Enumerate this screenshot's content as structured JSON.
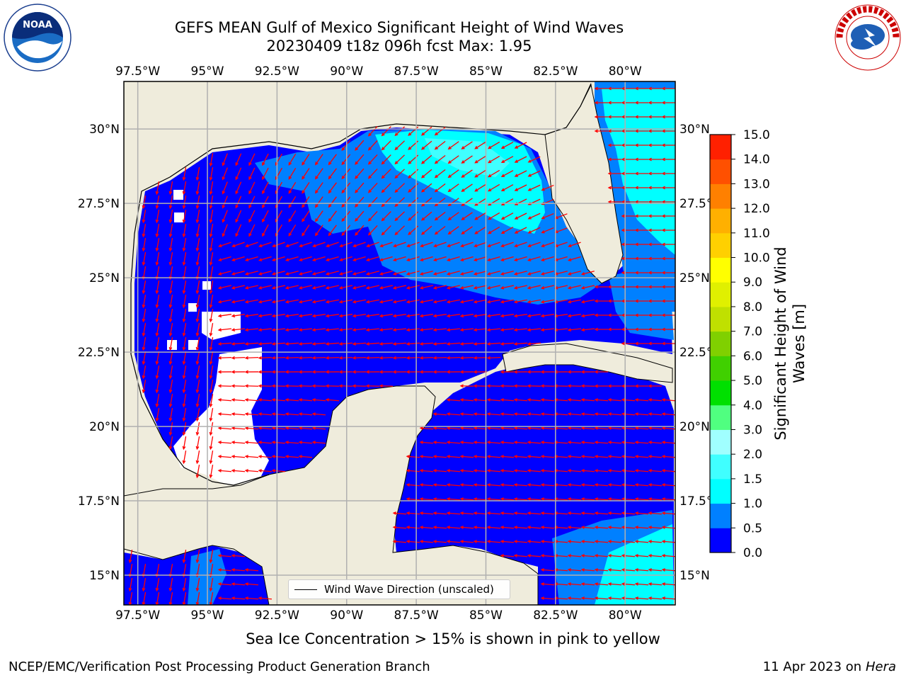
{
  "title": {
    "line1": "GEFS MEAN Gulf of Mexico Significant Height of Wind Waves",
    "line2": "20230409 t18z 096h fcst   Max: 1.95"
  },
  "axes": {
    "lon_labels": [
      "97.5°W",
      "95°W",
      "92.5°W",
      "90°W",
      "87.5°W",
      "85°W",
      "82.5°W",
      "80°W"
    ],
    "lon_values": [
      -97.5,
      -95,
      -92.5,
      -90,
      -87.5,
      -85,
      -82.5,
      -80
    ],
    "lat_labels": [
      "30°N",
      "27.5°N",
      "25°N",
      "22.5°N",
      "20°N",
      "17.5°N",
      "15°N"
    ],
    "lat_values": [
      30,
      27.5,
      25,
      22.5,
      20,
      17.5,
      15
    ],
    "lon_range": [
      -98,
      -78.2
    ],
    "lat_range": [
      14,
      31.6
    ],
    "grid": true
  },
  "colorbar": {
    "label": "Significant Height of Wind\nWaves [m]",
    "ticks": [
      "0.0",
      "0.5",
      "1.0",
      "1.5",
      "2.0",
      "3.0",
      "4.0",
      "5.0",
      "6.0",
      "7.0",
      "8.0",
      "9.0",
      "10.0",
      "11.0",
      "12.0",
      "13.0",
      "14.0",
      "15.0"
    ],
    "colors": [
      "#0000ff",
      "#0080ff",
      "#00ffff",
      "#40ffff",
      "#a0ffff",
      "#50ff80",
      "#00e000",
      "#40d000",
      "#80d000",
      "#c0e000",
      "#e0f000",
      "#ffff00",
      "#ffd000",
      "#ffb000",
      "#ff8000",
      "#ff5000",
      "#ff2000"
    ]
  },
  "legend": {
    "label": "Wind Wave Direction (unscaled)"
  },
  "caption": "Sea Ice Concentration > 15% is shown in pink to yellow",
  "footer": {
    "left": "NCEP/EMC/Verification Post Processing Product Generation Branch",
    "right_date": "11 Apr 2023 on ",
    "right_host": "Hera"
  },
  "colors": {
    "land": "#efecdc",
    "arrow": "#ff0000",
    "grid": "#b0b0b0",
    "coast": "#000000"
  },
  "logos": {
    "left": "noaa-logo",
    "right": "nws-logo"
  }
}
